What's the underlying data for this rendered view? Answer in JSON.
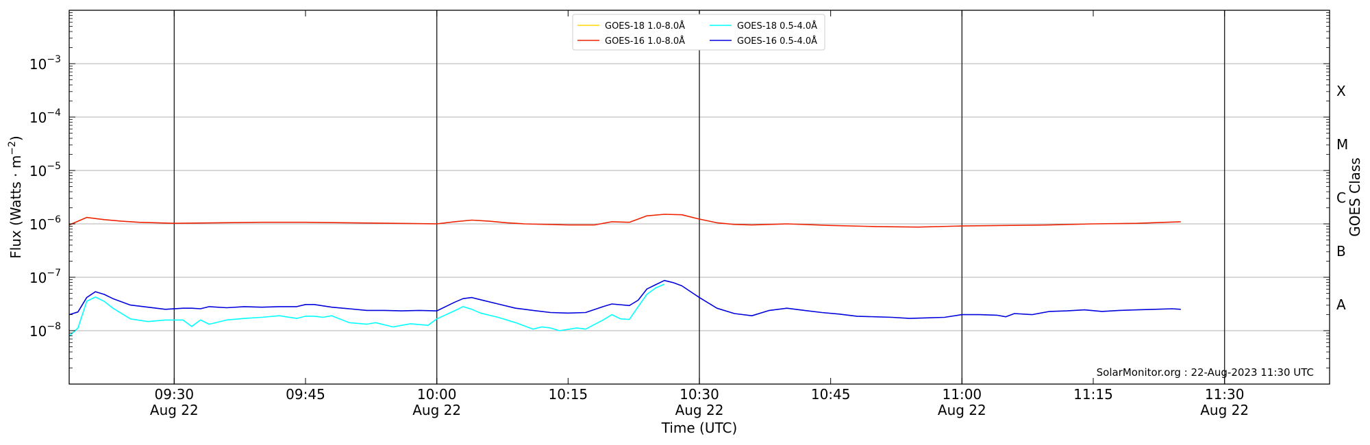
{
  "chart_data": {
    "type": "line",
    "xlabel": "Time (UTC)",
    "ylabel": "Flux (Watts · m",
    "ylabel_sup": "−2",
    "ylabel_close": ")",
    "y2label": "GOES Class",
    "yscale": "log",
    "ylim_exponent": [
      -9,
      -2
    ],
    "xlim": [
      "09:18",
      "11:42"
    ],
    "watermark": "SolarMonitor.org : 22-Aug-2023 11:30 UTC",
    "y_ticks": [
      {
        "base": "10",
        "exp": "−8",
        "value": -8
      },
      {
        "base": "10",
        "exp": "−7",
        "value": -7
      },
      {
        "base": "10",
        "exp": "−6",
        "value": -6
      },
      {
        "base": "10",
        "exp": "−5",
        "value": -5
      },
      {
        "base": "10",
        "exp": "−4",
        "value": -4
      },
      {
        "base": "10",
        "exp": "−3",
        "value": -3
      }
    ],
    "classes": [
      {
        "label": "A",
        "value": -7.5
      },
      {
        "label": "B",
        "value": -6.5
      },
      {
        "label": "C",
        "value": -5.5
      },
      {
        "label": "M",
        "value": -4.5
      },
      {
        "label": "X",
        "value": -3.5
      }
    ],
    "x_ticks": [
      {
        "time": "09:30",
        "line1": "09:30",
        "line2": "Aug 22",
        "major": true
      },
      {
        "time": "09:45",
        "line1": "09:45",
        "line2": "",
        "major": false
      },
      {
        "time": "10:00",
        "line1": "10:00",
        "line2": "Aug 22",
        "major": true
      },
      {
        "time": "10:15",
        "line1": "10:15",
        "line2": "",
        "major": false
      },
      {
        "time": "10:30",
        "line1": "10:30",
        "line2": "Aug 22",
        "major": true
      },
      {
        "time": "10:45",
        "line1": "10:45",
        "line2": "",
        "major": false
      },
      {
        "time": "11:00",
        "line1": "11:00",
        "line2": "Aug 22",
        "major": true
      },
      {
        "time": "11:15",
        "line1": "11:15",
        "line2": "",
        "major": false
      },
      {
        "time": "11:30",
        "line1": "11:30",
        "line2": "Aug 22",
        "major": true
      }
    ],
    "series": [
      {
        "name": "GOES-18 1.0-8.0Å",
        "color": "#ffd700",
        "legend_col": 0,
        "legend_row": 0,
        "x": [],
        "log_y": []
      },
      {
        "name": "GOES-16 1.0-8.0Å",
        "color": "#ee2200",
        "legend_col": 0,
        "legend_row": 1,
        "x": [
          "09:18",
          "09:20",
          "09:22",
          "09:24",
          "09:26",
          "09:28",
          "09:30",
          "09:35",
          "09:40",
          "09:45",
          "09:50",
          "09:55",
          "10:00",
          "10:02",
          "10:04",
          "10:06",
          "10:08",
          "10:10",
          "10:15",
          "10:18",
          "10:20",
          "10:22",
          "10:24",
          "10:26",
          "10:28",
          "10:30",
          "10:32",
          "10:34",
          "10:36",
          "10:40",
          "10:45",
          "10:50",
          "10:55",
          "11:00",
          "11:05",
          "11:10",
          "11:15",
          "11:20",
          "11:25"
        ],
        "log_y": [
          -6.02,
          -5.88,
          -5.92,
          -5.95,
          -5.97,
          -5.98,
          -5.99,
          -5.98,
          -5.97,
          -5.97,
          -5.98,
          -5.99,
          -6.0,
          -5.96,
          -5.93,
          -5.95,
          -5.98,
          -6.0,
          -6.02,
          -6.02,
          -5.96,
          -5.97,
          -5.85,
          -5.82,
          -5.83,
          -5.91,
          -5.98,
          -6.01,
          -6.02,
          -6.0,
          -6.03,
          -6.05,
          -6.06,
          -6.04,
          -6.03,
          -6.02,
          -6.0,
          -5.99,
          -5.96
        ]
      },
      {
        "name": "GOES-18 0.5-4.0Å",
        "color": "#00ffff",
        "legend_col": 1,
        "legend_row": 0,
        "x": [
          "09:18",
          "09:19",
          "09:20",
          "09:21",
          "09:22",
          "09:23",
          "09:25",
          "09:27",
          "09:29",
          "09:31",
          "09:32",
          "09:33",
          "09:34",
          "09:36",
          "09:38",
          "09:40",
          "09:42",
          "09:44",
          "09:45",
          "09:46",
          "09:47",
          "09:48",
          "09:50",
          "09:52",
          "09:53",
          "09:55",
          "09:56",
          "09:57",
          "09:59",
          "10:00",
          "10:02",
          "10:03",
          "10:04",
          "10:05",
          "10:07",
          "10:09",
          "10:11",
          "10:12",
          "10:13",
          "10:14",
          "10:16",
          "10:17",
          "10:19",
          "10:20",
          "10:21",
          "10:22",
          "10:23",
          "10:24",
          "10:25",
          "10:26"
        ],
        "log_y": [
          -8.1,
          -7.95,
          -7.45,
          -7.37,
          -7.45,
          -7.58,
          -7.78,
          -7.83,
          -7.8,
          -7.8,
          -7.92,
          -7.8,
          -7.88,
          -7.8,
          -7.77,
          -7.75,
          -7.72,
          -7.77,
          -7.73,
          -7.73,
          -7.75,
          -7.72,
          -7.85,
          -7.88,
          -7.85,
          -7.93,
          -7.9,
          -7.87,
          -7.9,
          -7.78,
          -7.63,
          -7.55,
          -7.6,
          -7.67,
          -7.75,
          -7.85,
          -7.97,
          -7.93,
          -7.95,
          -8.0,
          -7.95,
          -7.97,
          -7.8,
          -7.7,
          -7.78,
          -7.79,
          -7.55,
          -7.32,
          -7.2,
          -7.13
        ]
      },
      {
        "name": "GOES-16 0.5-4.0Å",
        "color": "#0000dd",
        "legend_col": 1,
        "legend_row": 1,
        "x": [
          "09:18",
          "09:19",
          "09:20",
          "09:21",
          "09:22",
          "09:23",
          "09:25",
          "09:27",
          "09:29",
          "09:31",
          "09:32",
          "09:33",
          "09:34",
          "09:36",
          "09:38",
          "09:40",
          "09:42",
          "09:44",
          "09:45",
          "09:46",
          "09:48",
          "09:50",
          "09:52",
          "09:54",
          "09:56",
          "09:58",
          "10:00",
          "10:02",
          "10:03",
          "10:04",
          "10:05",
          "10:07",
          "10:09",
          "10:11",
          "10:13",
          "10:15",
          "10:17",
          "10:19",
          "10:20",
          "10:22",
          "10:23",
          "10:24",
          "10:25",
          "10:26",
          "10:27",
          "10:28",
          "10:30",
          "10:32",
          "10:34",
          "10:36",
          "10:38",
          "10:40",
          "10:42",
          "10:44",
          "10:46",
          "10:48",
          "10:50",
          "10:52",
          "10:54",
          "10:56",
          "10:58",
          "11:00",
          "11:02",
          "11:04",
          "11:05",
          "11:06",
          "11:08",
          "11:10",
          "11:12",
          "11:14",
          "11:16",
          "11:18",
          "11:20",
          "11:22",
          "11:24",
          "11:25"
        ],
        "log_y": [
          -7.7,
          -7.65,
          -7.38,
          -7.27,
          -7.32,
          -7.4,
          -7.52,
          -7.56,
          -7.6,
          -7.58,
          -7.58,
          -7.59,
          -7.55,
          -7.57,
          -7.55,
          -7.56,
          -7.55,
          -7.55,
          -7.51,
          -7.51,
          -7.56,
          -7.59,
          -7.62,
          -7.62,
          -7.63,
          -7.62,
          -7.63,
          -7.47,
          -7.4,
          -7.38,
          -7.42,
          -7.5,
          -7.58,
          -7.62,
          -7.66,
          -7.67,
          -7.66,
          -7.55,
          -7.5,
          -7.53,
          -7.43,
          -7.22,
          -7.14,
          -7.06,
          -7.1,
          -7.16,
          -7.38,
          -7.58,
          -7.68,
          -7.72,
          -7.62,
          -7.58,
          -7.62,
          -7.66,
          -7.69,
          -7.73,
          -7.74,
          -7.75,
          -7.77,
          -7.76,
          -7.75,
          -7.7,
          -7.7,
          -7.71,
          -7.74,
          -7.68,
          -7.7,
          -7.64,
          -7.63,
          -7.61,
          -7.64,
          -7.62,
          -7.61,
          -7.6,
          -7.59,
          -7.6
        ]
      }
    ]
  }
}
